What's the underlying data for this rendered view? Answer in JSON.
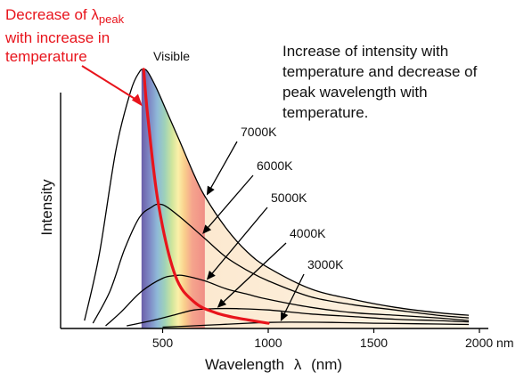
{
  "chart_data": {
    "type": "line",
    "title": "",
    "xlabel": "Wavelength",
    "xlabel_symbol": "λ",
    "xlabel_unit": "(nm)",
    "ylabel": "Intensity",
    "xlim": [
      0,
      2000
    ],
    "ylim": [
      0,
      100
    ],
    "x_ticks": [
      500,
      1000,
      1500,
      2000
    ],
    "x_tick_labels": [
      "500",
      "1000",
      "1500",
      "2000 nm"
    ],
    "grid": false,
    "visible_band": {
      "label": "Visible",
      "range": [
        400,
        700
      ]
    },
    "series": [
      {
        "name": "7000K",
        "x": [
          130,
          200,
          280,
          350,
          390,
          410,
          430,
          470,
          520,
          580,
          650,
          700,
          800,
          900,
          1000,
          1200,
          1400,
          1600,
          1800,
          1950
        ],
        "y": [
          3,
          28,
          68,
          90,
          97,
          98,
          97,
          91,
          82,
          71,
          58,
          50,
          38,
          29,
          23,
          15,
          11,
          8,
          6,
          5
        ]
      },
      {
        "name": "6000K",
        "x": [
          170,
          250,
          320,
          390,
          450,
          480,
          520,
          600,
          700,
          800,
          900,
          1000,
          1200,
          1400,
          1600,
          1800,
          1950
        ],
        "y": [
          2,
          14,
          30,
          42,
          46,
          47,
          46,
          41,
          34,
          27,
          22,
          18,
          12,
          9,
          7,
          5,
          4
        ]
      },
      {
        "name": "5000K",
        "x": [
          230,
          300,
          400,
          500,
          560,
          600,
          700,
          800,
          900,
          1000,
          1200,
          1400,
          1600,
          1800,
          1950
        ],
        "y": [
          1,
          6,
          14,
          19,
          20,
          20,
          18,
          15,
          13,
          11,
          8,
          6,
          5,
          4,
          3
        ]
      },
      {
        "name": "4000K",
        "x": [
          330,
          450,
          550,
          650,
          750,
          850,
          1000,
          1200,
          1400,
          1600,
          1800,
          1950
        ],
        "y": [
          1,
          3,
          5,
          7,
          7.5,
          7.5,
          7,
          5.5,
          4.5,
          3.5,
          3,
          2.5
        ]
      },
      {
        "name": "3000K",
        "x": [
          500,
          700,
          900,
          1000,
          1100,
          1300,
          1500,
          1700,
          1950
        ],
        "y": [
          0.5,
          1.2,
          2,
          2.3,
          2.4,
          2.3,
          2,
          1.8,
          1.5
        ]
      }
    ],
    "peak_trend": {
      "x": [
        410,
        430,
        480,
        560,
        650,
        750,
        850,
        1000
      ],
      "y": [
        98,
        80,
        47,
        20,
        10,
        6,
        4,
        2
      ]
    },
    "annotations": [
      {
        "text": "Decrease of",
        "symbol": "λ",
        "subscript": "peak",
        "line2": "with increase in",
        "line3": "temperature",
        "color": "#e8141c"
      },
      {
        "text": "Increase of intensity with temperature and decrease of peak wavelength with temperature."
      }
    ]
  },
  "colors": {
    "curve": "#000000",
    "trend": "#e8141c",
    "axis": "#000000"
  }
}
